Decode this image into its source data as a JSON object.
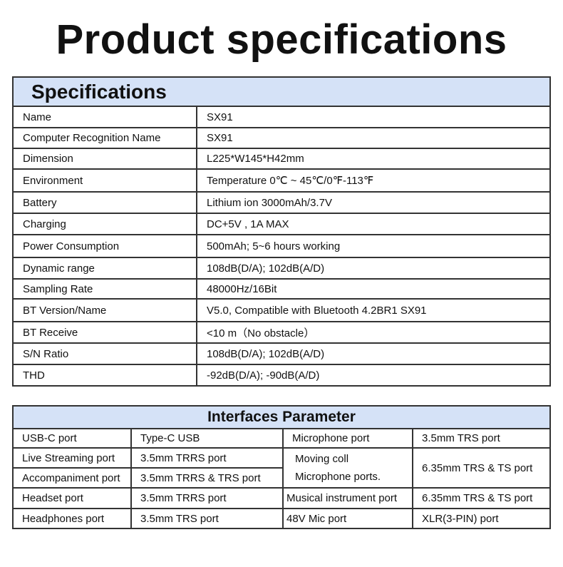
{
  "title": "Product specifications",
  "specifications": {
    "heading": "Specifications",
    "rows": [
      {
        "label": "Name",
        "value": "SX91"
      },
      {
        "label": "Computer Recognition Name",
        "value": "SX91"
      },
      {
        "label": "Dimension",
        "value": "L225*W145*H42mm"
      },
      {
        "label": "Environment",
        "value": "Temperature 0℃ ~ 45℃/0℉-113℉"
      },
      {
        "label": "Battery",
        "value": "Lithium ion 3000mAh/3.7V"
      },
      {
        "label": "Charging",
        "value": "DC+5V , 1A MAX"
      },
      {
        "label": "Power Consumption",
        "value": "500mAh; 5~6 hours working"
      },
      {
        "label": "Dynamic range",
        "value": "108dB(D/A); 102dB(A/D)"
      },
      {
        "label": "Sampling Rate",
        "value": "48000Hz/16Bit"
      },
      {
        "label": "BT Version/Name",
        "value": "V5.0, Compatible with Bluetooth 4.2BR1 SX91"
      },
      {
        "label": "BT Receive",
        "value": "<10 m（No obstacle）"
      },
      {
        "label": "S/N Ratio",
        "value": "108dB(D/A); 102dB(A/D)"
      },
      {
        "label": "THD",
        "value": "-92dB(D/A); -90dB(A/D)"
      }
    ]
  },
  "interfaces": {
    "heading": "Interfaces Parameter",
    "usb_label": "USB-C port",
    "usb_value": "Type-C USB",
    "mic_label": "Microphone port",
    "mic_value": "3.5mm TRS port",
    "live_label": "Live Streaming port",
    "live_value": "3.5mm TRRS port",
    "moving_label_1": "Moving coll",
    "moving_label_2": "Microphone ports.",
    "moving_value": "6.35mm TRS & TS port",
    "accomp_label": "Accompaniment port",
    "accomp_value": "3.5mm TRRS & TRS port",
    "headset_label": "Headset port",
    "headset_value": "3.5mm TRRS port",
    "instrument_label": "Musical instrument port",
    "instrument_value": "6.35mm TRS & TS port",
    "headphones_label": "Headphones port",
    "headphones_value": "3.5mm TRS port",
    "mic48_label": "48V Mic port",
    "mic48_value": "XLR(3-PIN) port"
  }
}
